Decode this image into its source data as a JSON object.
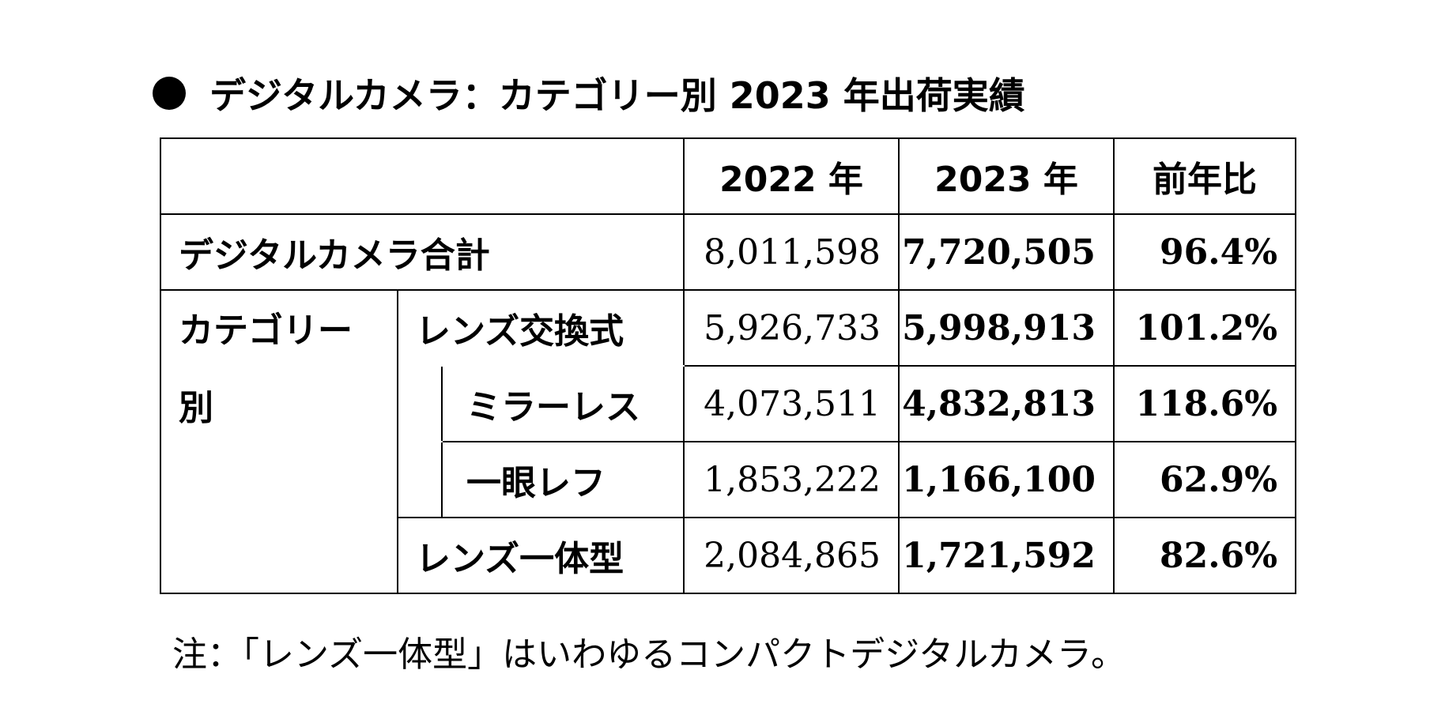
{
  "title": "デジタルカメラ：カテゴリー別 2023 年出荷実績",
  "table": {
    "headers": [
      "2022 年",
      "2023 年",
      "前年比"
    ],
    "total": {
      "label": "デジタルカメラ合計",
      "y2022": "8,011,598",
      "y2023": "7,720,505",
      "ratio": "96.4%"
    },
    "category_label_line1": "カテゴリー",
    "category_label_line2": "別",
    "interchangeable": {
      "label": "レンズ交換式",
      "y2022": "5,926,733",
      "y2023": "5,998,913",
      "ratio": "101.2%"
    },
    "mirrorless": {
      "label": "ミラーレス",
      "y2022": "4,073,511",
      "y2023": "4,832,813",
      "ratio": "118.6%"
    },
    "slr": {
      "label": "一眼レフ",
      "y2022": "1,853,222",
      "y2023": "1,166,100",
      "ratio": "62.9%"
    },
    "integrated": {
      "label": "レンズ一体型",
      "y2022": "2,084,865",
      "y2023": "1,721,592",
      "ratio": "82.6%"
    }
  },
  "note": "注：「レンズ一体型」はいわゆるコンパクトデジタルカメラ。"
}
